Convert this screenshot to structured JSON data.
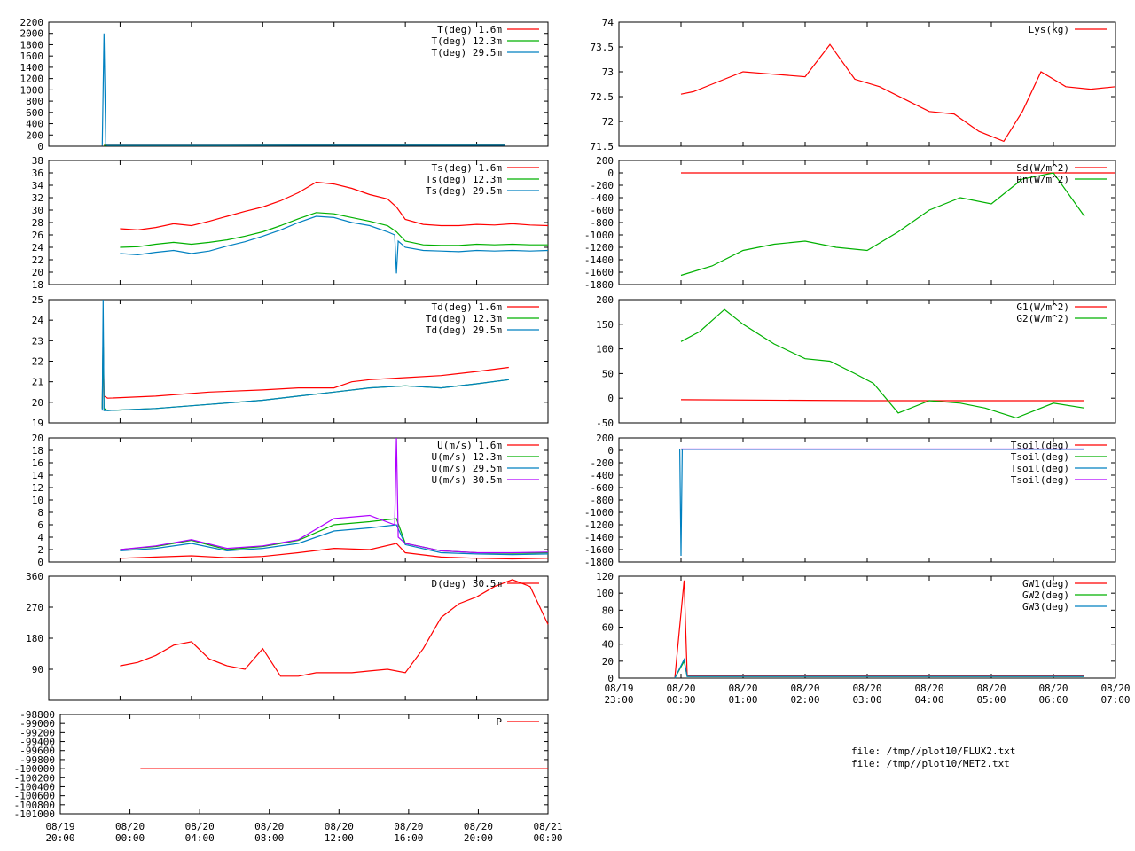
{
  "colors": {
    "c1": "#ff0000",
    "c2": "#00b000",
    "c3": "#0080c0",
    "c4": "#b000ff",
    "axis": "#000000"
  },
  "files": [
    "file: /tmp//plot10/FLUX2.txt",
    "file: /tmp//plot10/MET2.txt"
  ],
  "left_xaxis": {
    "tick_labels": [
      [
        "08/19",
        "20:00"
      ],
      [
        "08/20",
        "00:00"
      ],
      [
        "08/20",
        "04:00"
      ],
      [
        "08/20",
        "08:00"
      ],
      [
        "08/20",
        "12:00"
      ],
      [
        "08/20",
        "16:00"
      ],
      [
        "08/20",
        "20:00"
      ],
      [
        "08/21",
        "00:00"
      ]
    ],
    "range_hours": [
      0,
      28
    ]
  },
  "right_xaxis": {
    "tick_labels": [
      [
        "08/19",
        "23:00"
      ],
      [
        "08/20",
        "00:00"
      ],
      [
        "08/20",
        "01:00"
      ],
      [
        "08/20",
        "02:00"
      ],
      [
        "08/20",
        "03:00"
      ],
      [
        "08/20",
        "04:00"
      ],
      [
        "08/20",
        "05:00"
      ],
      [
        "08/20",
        "06:00"
      ],
      [
        "08/20",
        "07:00"
      ]
    ],
    "range_hours": [
      0,
      8
    ]
  },
  "chart_data": [
    {
      "type": "line",
      "ylim": [
        0,
        2200
      ],
      "yticks": [
        "0",
        "200",
        "400",
        "600",
        "800",
        "1000",
        "1200",
        "1400",
        "1600",
        "1800",
        "2000",
        "2200"
      ],
      "series": [
        {
          "name": "T(deg)  1.6m",
          "color": "#ff0000",
          "x": [
            3.1,
            3.2,
            6,
            10,
            14,
            18,
            22,
            25.6
          ],
          "y": [
            18,
            18,
            18,
            18,
            20,
            22,
            21,
            22
          ]
        },
        {
          "name": "T(deg) 12.3m",
          "color": "#00b000",
          "x": [
            3.1,
            3.2,
            6,
            10,
            14,
            18,
            22,
            25.6
          ],
          "y": [
            16,
            16,
            16,
            16,
            18,
            19,
            18,
            19
          ]
        },
        {
          "name": "T(deg) 29.5m",
          "color": "#0080c0",
          "x": [
            3,
            3.1,
            3.2,
            3.3,
            6,
            10,
            14,
            18,
            22,
            25.6
          ],
          "y": [
            10,
            2000,
            20,
            16,
            16,
            16,
            17,
            18,
            17,
            18
          ]
        }
      ]
    },
    {
      "type": "line",
      "ylim": [
        18,
        38
      ],
      "yticks": [
        "18",
        "20",
        "22",
        "24",
        "26",
        "28",
        "30",
        "32",
        "34",
        "36",
        "38"
      ],
      "series": [
        {
          "name": "Ts(deg)  1.6m",
          "color": "#ff0000",
          "x": [
            4,
            5,
            6,
            7,
            8,
            9,
            10,
            11,
            12,
            13,
            14,
            15,
            16,
            17,
            18,
            19,
            19.5,
            20,
            21,
            22,
            23,
            24,
            25,
            26,
            27,
            28
          ],
          "y": [
            27,
            26.8,
            27.2,
            27.8,
            27.5,
            28.2,
            29,
            29.8,
            30.5,
            31.5,
            32.8,
            34.5,
            34.2,
            33.5,
            32.5,
            31.8,
            30.5,
            28.5,
            27.7,
            27.5,
            27.5,
            27.7,
            27.6,
            27.8,
            27.6,
            27.5
          ]
        },
        {
          "name": "Ts(deg) 12.3m",
          "color": "#00b000",
          "x": [
            4,
            5,
            6,
            7,
            8,
            9,
            10,
            11,
            12,
            13,
            14,
            15,
            16,
            17,
            18,
            19,
            19.5,
            20,
            21,
            22,
            23,
            24,
            25,
            26,
            27,
            28
          ],
          "y": [
            24,
            24.1,
            24.5,
            24.8,
            24.5,
            24.8,
            25.2,
            25.8,
            26.5,
            27.5,
            28.6,
            29.6,
            29.4,
            28.8,
            28.2,
            27.5,
            26.5,
            25,
            24.4,
            24.3,
            24.3,
            24.5,
            24.4,
            24.5,
            24.4,
            24.4
          ]
        },
        {
          "name": "Ts(deg) 29.5m",
          "color": "#0080c0",
          "x": [
            4,
            5,
            6,
            7,
            8,
            9,
            10,
            11,
            12,
            13,
            14,
            15,
            16,
            17,
            18,
            19,
            19.4,
            19.5,
            19.6,
            20,
            21,
            22,
            23,
            24,
            25,
            26,
            27,
            28
          ],
          "y": [
            23,
            22.8,
            23.2,
            23.5,
            23,
            23.4,
            24.2,
            24.9,
            25.8,
            26.8,
            28,
            29,
            28.8,
            28,
            27.5,
            26.5,
            26,
            19.8,
            25,
            24,
            23.5,
            23.4,
            23.3,
            23.5,
            23.4,
            23.5,
            23.4,
            23.5
          ]
        }
      ]
    },
    {
      "type": "line",
      "ylim": [
        19,
        25
      ],
      "yticks": [
        "19",
        "20",
        "21",
        "22",
        "23",
        "24",
        "25"
      ],
      "series": [
        {
          "name": "Td(deg)  1.6m",
          "color": "#ff0000",
          "x": [
            3,
            3.05,
            3.1,
            3.3,
            6,
            9,
            12,
            14,
            16,
            17,
            18,
            20,
            22,
            24,
            25.8
          ],
          "y": [
            19.7,
            23,
            20.3,
            20.2,
            20.3,
            20.5,
            20.6,
            20.7,
            20.7,
            21,
            21.1,
            21.2,
            21.3,
            21.5,
            21.7
          ]
        },
        {
          "name": "Td(deg) 12.3m",
          "color": "#00b000",
          "x": [
            3,
            3.05,
            3.1,
            3.3,
            6,
            9,
            12,
            14,
            16,
            18,
            20,
            22,
            24,
            25.8
          ],
          "y": [
            19.7,
            23.5,
            19.7,
            19.6,
            19.7,
            19.9,
            20.1,
            20.3,
            20.5,
            20.7,
            20.8,
            20.7,
            20.9,
            21.1
          ]
        },
        {
          "name": "Td(deg) 29.5m",
          "color": "#0080c0",
          "x": [
            3,
            3.05,
            3.1,
            3.3,
            6,
            9,
            12,
            14,
            16,
            18,
            20,
            22,
            24,
            25.8
          ],
          "y": [
            19.6,
            25,
            19.6,
            19.6,
            19.7,
            19.9,
            20.1,
            20.3,
            20.5,
            20.7,
            20.8,
            20.7,
            20.9,
            21.1
          ]
        }
      ]
    },
    {
      "type": "line",
      "ylim": [
        0,
        20
      ],
      "yticks": [
        "0",
        "2",
        "4",
        "6",
        "8",
        "10",
        "12",
        "14",
        "16",
        "18",
        "20"
      ],
      "series": [
        {
          "name": "U(m/s)  1.6m",
          "color": "#ff0000",
          "x": [
            4,
            6,
            8,
            10,
            12,
            14,
            16,
            18,
            19.5,
            20,
            22,
            24,
            26,
            28
          ],
          "y": [
            0.6,
            0.8,
            1,
            0.7,
            0.9,
            1.5,
            2.2,
            2,
            3,
            1.5,
            0.8,
            0.6,
            0.5,
            0.6
          ]
        },
        {
          "name": "U(m/s) 12.3m",
          "color": "#00b000",
          "x": [
            4,
            6,
            8,
            10,
            12,
            14,
            16,
            18,
            19.5,
            20,
            22,
            24,
            26,
            28
          ],
          "y": [
            2,
            2.5,
            3.5,
            2,
            2.5,
            3.5,
            6,
            6.5,
            7,
            3,
            1.8,
            1.5,
            1.4,
            1.5
          ]
        },
        {
          "name": "U(m/s) 29.5m",
          "color": "#0080c0",
          "x": [
            4,
            6,
            8,
            10,
            12,
            14,
            16,
            18,
            19.5,
            20,
            22,
            24,
            26,
            28
          ],
          "y": [
            1.8,
            2.2,
            3,
            1.8,
            2.2,
            3,
            5,
            5.5,
            6,
            2.8,
            1.5,
            1.3,
            1.2,
            1.3
          ]
        },
        {
          "name": "U(m/s) 30.5m",
          "color": "#b000ff",
          "x": [
            4,
            6,
            8,
            10,
            12,
            14,
            16,
            18,
            19.4,
            19.5,
            19.6,
            20,
            22,
            24,
            26,
            28
          ],
          "y": [
            2,
            2.6,
            3.6,
            2.2,
            2.6,
            3.6,
            7,
            7.5,
            6,
            20,
            4,
            3,
            1.8,
            1.5,
            1.5,
            1.6
          ]
        }
      ]
    },
    {
      "type": "line",
      "ylim": [
        0,
        360
      ],
      "yticks": [
        "90",
        "180",
        "270",
        "360"
      ],
      "series": [
        {
          "name": "D(deg)  30.5m",
          "color": "#ff0000",
          "x": [
            4,
            5,
            6,
            7,
            8,
            9,
            10,
            11,
            12,
            13,
            14,
            15,
            16,
            17,
            18,
            19,
            20,
            21,
            22,
            23,
            24,
            25,
            26,
            27,
            28
          ],
          "y": [
            100,
            110,
            130,
            160,
            170,
            120,
            100,
            90,
            150,
            70,
            70,
            80,
            80,
            80,
            85,
            90,
            80,
            150,
            240,
            280,
            300,
            330,
            350,
            330,
            220
          ]
        }
      ]
    },
    {
      "type": "line",
      "ylim": [
        -101000,
        -98800
      ],
      "yticks": [
        "-101000",
        "-100800",
        "-100600",
        "-100400",
        "-100200",
        "-100000",
        "-99800",
        "-99600",
        "-99400",
        "-99200",
        "-99000",
        "-98800"
      ],
      "series": [
        {
          "name": "P",
          "color": "#ff0000",
          "x": [
            4.6,
            28
          ],
          "y": [
            -100000,
            -100000
          ]
        }
      ]
    },
    {
      "type": "line",
      "ylim": [
        71.5,
        74
      ],
      "yticks": [
        "71.5",
        "72",
        "72.5",
        "73",
        "73.5",
        "74"
      ],
      "series": [
        {
          "name": "Lys(kg)",
          "color": "#ff0000",
          "x": [
            1.0,
            1.2,
            1.5,
            2,
            2.5,
            3.0,
            3.4,
            3.8,
            4.2,
            4.6,
            5.0,
            5.4,
            5.8,
            6.2,
            6.5,
            6.8,
            7.2,
            7.6,
            8.0
          ],
          "y": [
            72.55,
            72.6,
            72.75,
            73,
            72.95,
            72.9,
            73.55,
            72.85,
            72.7,
            72.45,
            72.2,
            72.15,
            71.8,
            71.6,
            72.2,
            73.0,
            72.7,
            72.65,
            72.7
          ]
        }
      ]
    },
    {
      "type": "line",
      "ylim": [
        -1800,
        200
      ],
      "yticks": [
        "-1800",
        "-1600",
        "-1400",
        "-1200",
        "-1000",
        "-800",
        "-600",
        "-400",
        "-200",
        "0",
        "200"
      ],
      "series": [
        {
          "name": "Sd(W/m^2)",
          "color": "#ff0000",
          "x": [
            1.0,
            8.0
          ],
          "y": [
            0,
            0
          ]
        },
        {
          "name": "Rn(W/m^2)",
          "color": "#00b000",
          "x": [
            1.0,
            1.5,
            2,
            2.5,
            3,
            3.5,
            4,
            4.5,
            5,
            5.5,
            6,
            6.5,
            7,
            7.5
          ],
          "y": [
            -1650,
            -1500,
            -1250,
            -1150,
            -1100,
            -1200,
            -1250,
            -950,
            -600,
            -400,
            -500,
            -100,
            0,
            -700
          ]
        }
      ]
    },
    {
      "type": "line",
      "ylim": [
        -50,
        200
      ],
      "yticks": [
        "-50",
        "0",
        "50",
        "100",
        "150",
        "200"
      ],
      "series": [
        {
          "name": "G1(W/m^2)",
          "color": "#ff0000",
          "x": [
            1.0,
            4.0,
            7.5
          ],
          "y": [
            -3,
            -5,
            -5
          ]
        },
        {
          "name": "G2(W/m^2)",
          "color": "#00b000",
          "x": [
            1.0,
            1.3,
            1.7,
            2.0,
            2.5,
            3.0,
            3.4,
            3.8,
            4.1,
            4.5,
            5.0,
            5.5,
            5.9,
            6.4,
            7.0,
            7.5
          ],
          "y": [
            115,
            135,
            180,
            150,
            110,
            80,
            75,
            50,
            30,
            -30,
            -5,
            -10,
            -20,
            -40,
            -10,
            -20
          ]
        }
      ]
    },
    {
      "type": "line",
      "ylim": [
        -1800,
        200
      ],
      "yticks": [
        "-1800",
        "-1600",
        "-1400",
        "-1200",
        "-1000",
        "-800",
        "-600",
        "-400",
        "-200",
        "0",
        "200"
      ],
      "series": [
        {
          "name": "Tsoil(deg)",
          "color": "#ff0000",
          "x": [
            1.0,
            7.5
          ],
          "y": [
            20,
            20
          ]
        },
        {
          "name": "Tsoil(deg)",
          "color": "#00b000",
          "x": [
            1.0,
            7.5
          ],
          "y": [
            18,
            18
          ]
        },
        {
          "name": "Tsoil(deg)",
          "color": "#0080c0",
          "x": [
            0.98,
            1.0,
            1.02,
            1.1,
            7.5
          ],
          "y": [
            20,
            -1700,
            15,
            15,
            15
          ]
        },
        {
          "name": "Tsoil(deg)",
          "color": "#b000ff",
          "x": [
            1.0,
            7.5
          ],
          "y": [
            22,
            22
          ]
        }
      ]
    },
    {
      "type": "line",
      "ylim": [
        0,
        120
      ],
      "yticks": [
        "0",
        "20",
        "40",
        "60",
        "80",
        "100",
        "120"
      ],
      "series": [
        {
          "name": "GW1(deg)",
          "color": "#ff0000",
          "x": [
            0.9,
            1.05,
            1.1,
            7.5
          ],
          "y": [
            0,
            115,
            3,
            3
          ]
        },
        {
          "name": "GW2(deg)",
          "color": "#00b000",
          "x": [
            0.9,
            1.05,
            1.1,
            7.5
          ],
          "y": [
            0,
            20,
            2,
            2
          ]
        },
        {
          "name": "GW3(deg)",
          "color": "#0080c0",
          "x": [
            0.9,
            1.05,
            1.1,
            7.5
          ],
          "y": [
            0,
            22,
            2,
            2
          ]
        }
      ]
    }
  ]
}
